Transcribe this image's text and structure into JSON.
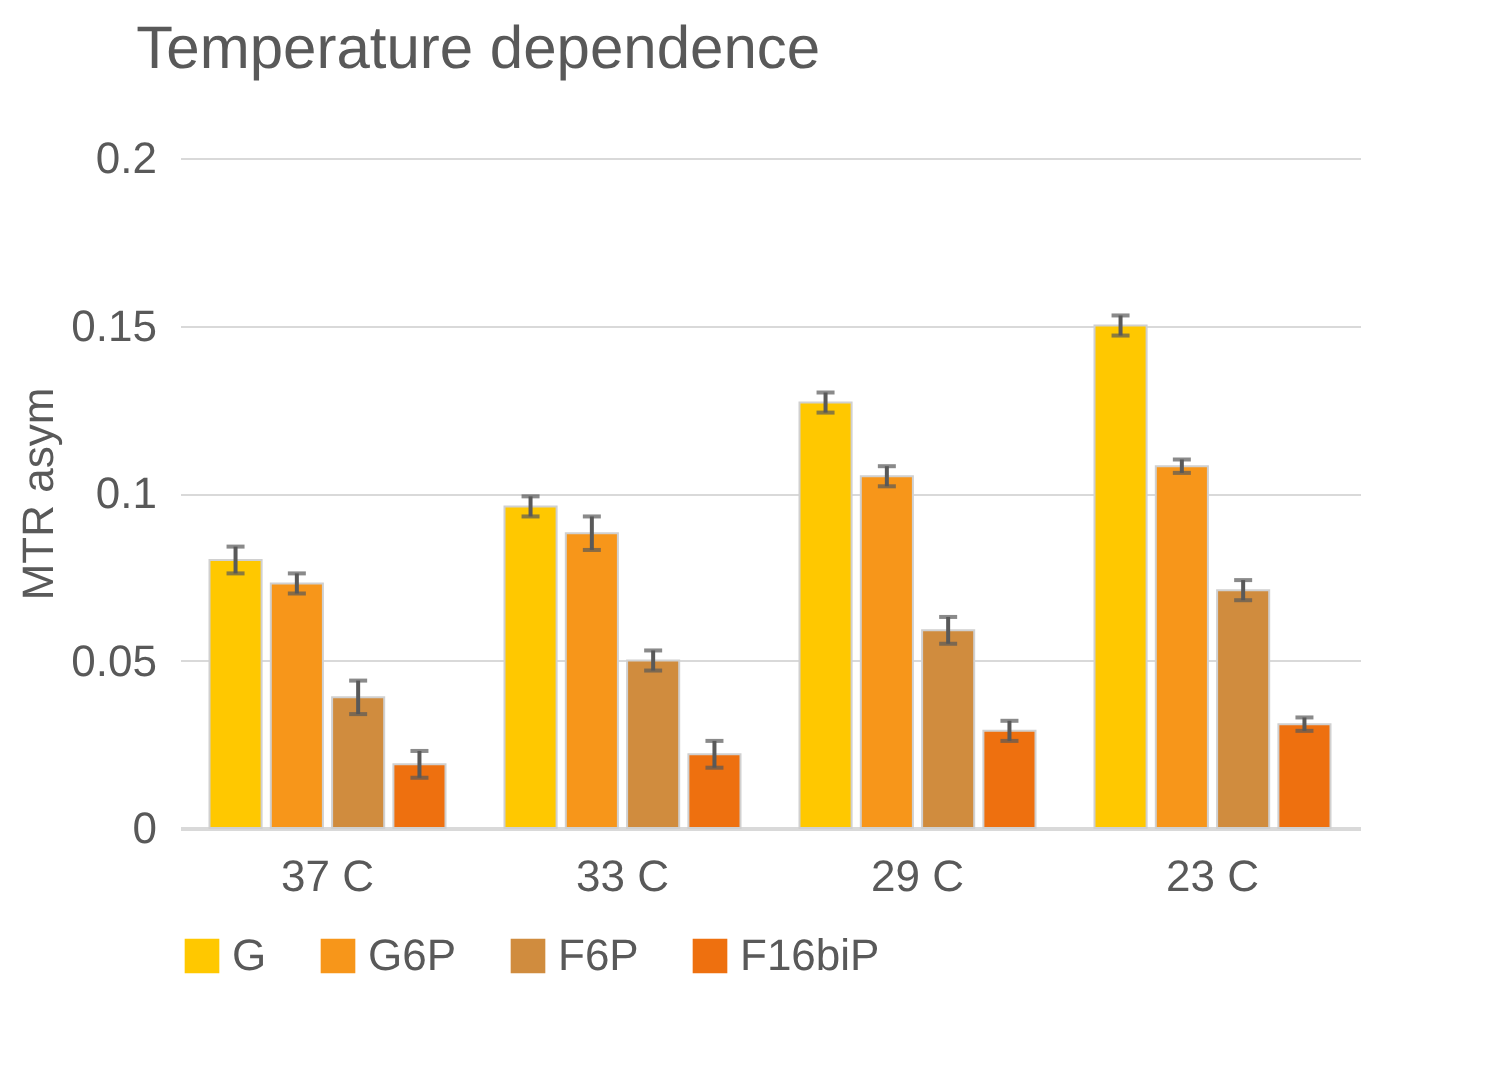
{
  "chart_data": {
    "type": "bar",
    "title": "Temperature dependence",
    "ylabel": "MTR asym",
    "categories": [
      "37 C",
      "33 C",
      "29 C",
      "23 C"
    ],
    "series": [
      {
        "name": "G",
        "color": "#ffc800",
        "values": [
          0.08,
          0.096,
          0.127,
          0.15
        ],
        "errors": [
          0.004,
          0.003,
          0.003,
          0.003
        ]
      },
      {
        "name": "G6P",
        "color": "#f7961a",
        "values": [
          0.073,
          0.088,
          0.105,
          0.108
        ],
        "errors": [
          0.003,
          0.005,
          0.003,
          0.002
        ]
      },
      {
        "name": "F6P",
        "color": "#d08c3e",
        "values": [
          0.039,
          0.05,
          0.059,
          0.071
        ],
        "errors": [
          0.005,
          0.003,
          0.004,
          0.003
        ]
      },
      {
        "name": "F16biP",
        "color": "#ee700f",
        "values": [
          0.019,
          0.022,
          0.029,
          0.031
        ],
        "errors": [
          0.004,
          0.004,
          0.003,
          0.002
        ]
      }
    ],
    "ylim": [
      0,
      0.2
    ],
    "yticks": [
      0,
      0.05,
      0.1,
      0.15,
      0.2
    ],
    "grid": "y",
    "legend": "bottom"
  }
}
